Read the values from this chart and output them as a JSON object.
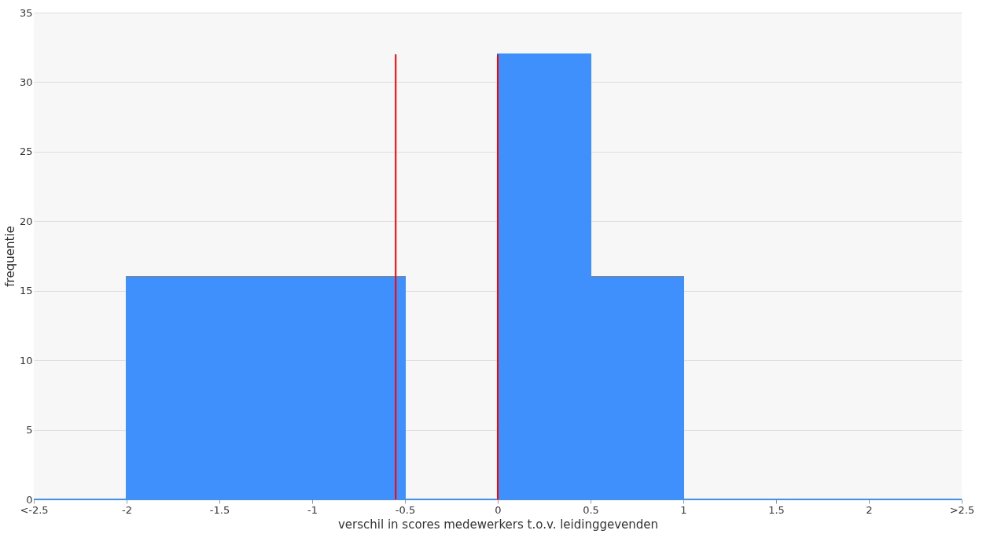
{
  "chart_data": {
    "type": "histogram",
    "xlabel": "verschil in scores medewerkers t.o.v. leidinggevenden",
    "ylabel": "frequentie",
    "bins": [
      -2.5,
      -2,
      -1.5,
      -1,
      -0.5,
      0,
      0.5,
      1,
      1.5,
      2,
      2.5
    ],
    "values": [
      0,
      16,
      16,
      16,
      0,
      32,
      16,
      0,
      0,
      0
    ],
    "color": "#3f8ffd",
    "xlim": [
      -2.5,
      2.5
    ],
    "xticks": [
      {
        "value": -2.5,
        "label": "<-2.5"
      },
      -2,
      -1.5,
      -1,
      -0.5,
      0,
      0.5,
      1,
      1.5,
      2,
      {
        "value": 2.5,
        "label": ">2.5"
      }
    ],
    "ylim": [
      0,
      35
    ],
    "yticks": [
      0,
      5,
      10,
      15,
      20,
      25,
      30,
      35
    ],
    "ref_lines": [
      {
        "axis": "x",
        "value": -0.55,
        "color": "#ff0000"
      },
      {
        "axis": "x",
        "value": 0,
        "color": "#ff0000"
      }
    ],
    "grid": "y"
  }
}
